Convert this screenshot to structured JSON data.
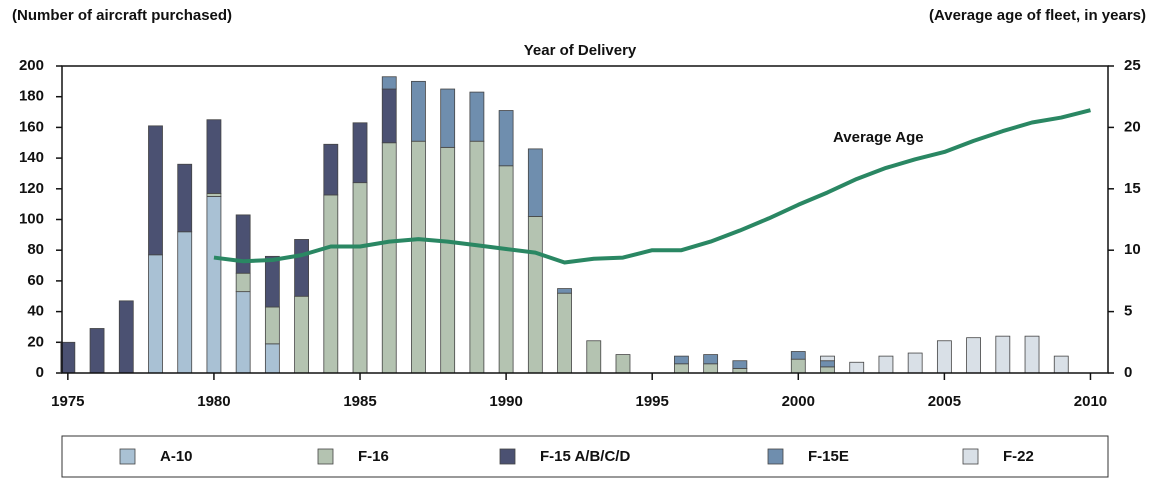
{
  "chart_data": {
    "type": "bar",
    "stacked": true,
    "title": "Year of Delivery",
    "y_label": "(Number of aircraft purchased)",
    "y2_label": "(Average age of fleet, in years)",
    "x": [
      1975,
      1976,
      1977,
      1978,
      1979,
      1980,
      1981,
      1982,
      1983,
      1984,
      1985,
      1986,
      1987,
      1988,
      1989,
      1990,
      1991,
      1992,
      1993,
      1994,
      1995,
      1996,
      1997,
      1998,
      1999,
      2000,
      2001,
      2002,
      2003,
      2004,
      2005,
      2006,
      2007,
      2008,
      2009
    ],
    "xlim": [
      1974.8,
      2010.6
    ],
    "xticks": [
      1975,
      1980,
      1985,
      1990,
      1995,
      2000,
      2005,
      2010
    ],
    "ylim": [
      0,
      200
    ],
    "yticks": [
      0,
      20,
      40,
      60,
      80,
      100,
      120,
      140,
      160,
      180,
      200
    ],
    "y2lim": [
      0,
      25
    ],
    "y2ticks": [
      0,
      5,
      10,
      15,
      20,
      25
    ],
    "series": [
      {
        "name": "A-10",
        "color": "#a9c1d4",
        "values": [
          0,
          0,
          0,
          77,
          92,
          115,
          53,
          19,
          0,
          0,
          0,
          0,
          0,
          0,
          0,
          0,
          0,
          0,
          0,
          0,
          0,
          0,
          0,
          0,
          0,
          0,
          0,
          0,
          0,
          0,
          0,
          0,
          0,
          0,
          0
        ]
      },
      {
        "name": "F-16",
        "color": "#b4c3b1",
        "values": [
          0,
          0,
          0,
          0,
          0,
          2,
          12,
          24,
          50,
          116,
          124,
          150,
          151,
          147,
          151,
          135,
          102,
          52,
          21,
          12,
          0,
          6,
          6,
          3,
          0,
          9,
          4,
          0,
          0,
          0,
          0,
          0,
          0,
          0,
          0
        ]
      },
      {
        "name": "F-15 A/B/C/D",
        "color": "#4b5172",
        "values": [
          20,
          29,
          47,
          84,
          44,
          48,
          38,
          33,
          37,
          33,
          39,
          35,
          0,
          0,
          0,
          0,
          0,
          0,
          0,
          0,
          0,
          0,
          0,
          0,
          0,
          0,
          0,
          0,
          0,
          0,
          0,
          0,
          0,
          0,
          0
        ]
      },
      {
        "name": "F-15E",
        "color": "#6f8eae",
        "values": [
          0,
          0,
          0,
          0,
          0,
          0,
          0,
          0,
          0,
          0,
          0,
          8,
          39,
          38,
          32,
          36,
          44,
          3,
          0,
          0,
          0,
          5,
          6,
          5,
          0,
          5,
          4,
          0,
          0,
          0,
          0,
          0,
          0,
          0,
          0
        ]
      },
      {
        "name": "F-22",
        "color": "#d9e0e7",
        "values": [
          0,
          0,
          0,
          0,
          0,
          0,
          0,
          0,
          0,
          0,
          0,
          0,
          0,
          0,
          0,
          0,
          0,
          0,
          0,
          0,
          0,
          0,
          0,
          0,
          0,
          0,
          3,
          7,
          11,
          13,
          21,
          23,
          24,
          24,
          11
        ]
      },
      {
        "name": "Average Age",
        "type": "line",
        "axis": "y2",
        "color": "#2a8763",
        "x": [
          1980,
          1981,
          1982,
          1983,
          1984,
          1985,
          1986,
          1987,
          1988,
          1989,
          1990,
          1991,
          1992,
          1993,
          1994,
          1995,
          1996,
          1997,
          1998,
          1999,
          2000,
          2001,
          2002,
          2003,
          2004,
          2005,
          2006,
          2007,
          2008,
          2009,
          2010
        ],
        "values": [
          9.4,
          9.1,
          9.2,
          9.6,
          10.3,
          10.3,
          10.7,
          10.9,
          10.7,
          10.4,
          10.1,
          9.8,
          9.0,
          9.3,
          9.4,
          10.0,
          10.0,
          10.7,
          11.6,
          12.6,
          13.7,
          14.7,
          15.8,
          16.7,
          17.4,
          18.0,
          18.9,
          19.7,
          20.4,
          20.8,
          21.4
        ]
      }
    ],
    "legend": "bottom"
  }
}
